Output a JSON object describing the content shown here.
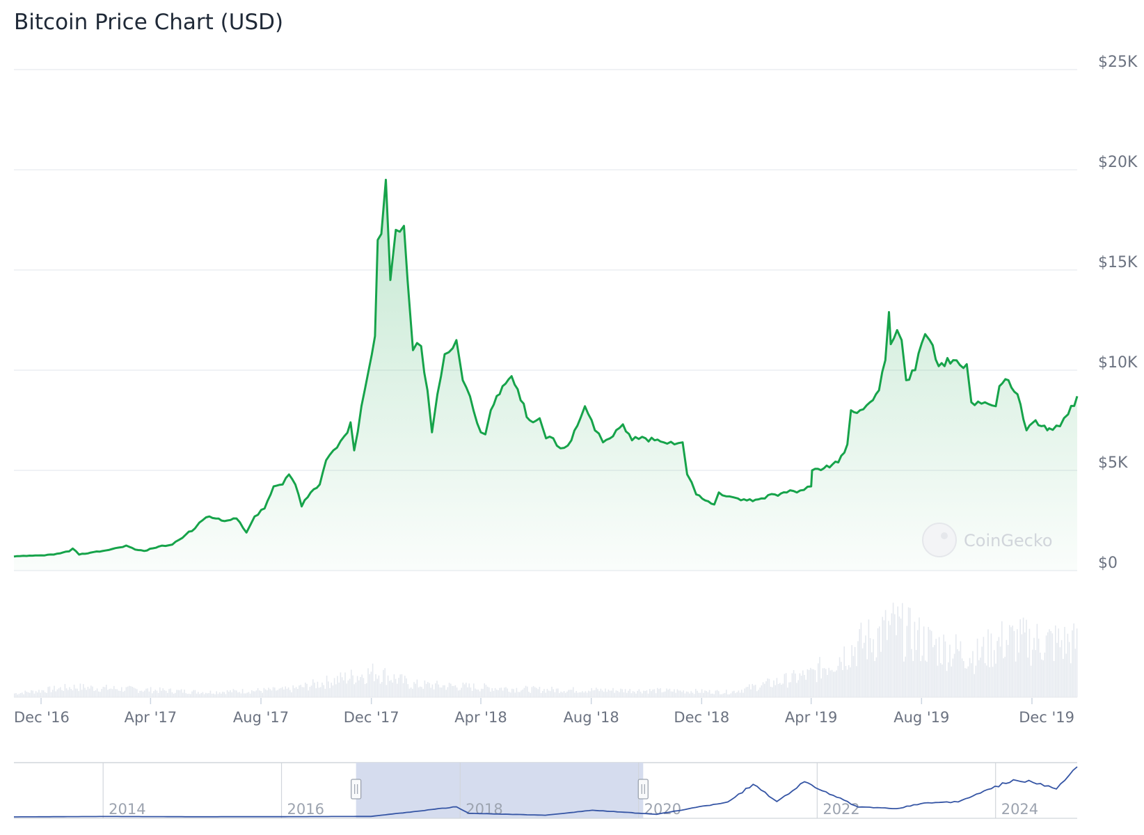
{
  "title": "Bitcoin Price Chart (USD)",
  "watermark": "CoinGecko",
  "colors": {
    "price_line": "#16a34a",
    "volume": "#e5e9ef",
    "navigator_line": "#3454a4",
    "navigator_selection": "#d5dcee",
    "grid": "#e8ebef"
  },
  "chart_data": {
    "type": "area",
    "series_name": "",
    "x_range": [
      "2016-11-01",
      "2020-01-20"
    ],
    "ylim": [
      0,
      25000
    ],
    "y_ticks": [
      0,
      5000,
      10000,
      15000,
      20000,
      25000
    ],
    "y_tick_labels": [
      "$0",
      "$5K",
      "$10K",
      "$15K",
      "$20K",
      "$25K"
    ],
    "x_tick_labels": [
      "Dec '16",
      "Apr '17",
      "Aug '17",
      "Dec '17",
      "Apr '18",
      "Aug '18",
      "Dec '18",
      "Apr '19",
      "Aug '19",
      "Dec '19"
    ],
    "x_tick_dates": [
      "2016-12-01",
      "2017-04-01",
      "2017-08-01",
      "2017-12-01",
      "2018-04-01",
      "2018-08-01",
      "2018-12-01",
      "2019-04-01",
      "2019-08-01",
      "2019-12-01"
    ],
    "price": {
      "dates": [
        "2016-11-01",
        "2016-11-15",
        "2016-12-01",
        "2016-12-15",
        "2017-01-01",
        "2017-01-05",
        "2017-01-12",
        "2017-01-25",
        "2017-02-10",
        "2017-02-25",
        "2017-03-05",
        "2017-03-15",
        "2017-03-25",
        "2017-04-10",
        "2017-04-25",
        "2017-05-10",
        "2017-05-20",
        "2017-05-25",
        "2017-06-05",
        "2017-06-12",
        "2017-06-25",
        "2017-07-05",
        "2017-07-16",
        "2017-07-25",
        "2017-08-05",
        "2017-08-15",
        "2017-08-25",
        "2017-09-01",
        "2017-09-08",
        "2017-09-15",
        "2017-09-25",
        "2017-10-05",
        "2017-10-12",
        "2017-10-20",
        "2017-11-01",
        "2017-11-08",
        "2017-11-12",
        "2017-11-20",
        "2017-11-28",
        "2017-12-05",
        "2017-12-08",
        "2017-12-12",
        "2017-12-17",
        "2017-12-22",
        "2017-12-28",
        "2018-01-06",
        "2018-01-10",
        "2018-01-16",
        "2018-01-25",
        "2018-02-01",
        "2018-02-06",
        "2018-02-12",
        "2018-02-20",
        "2018-03-01",
        "2018-03-05",
        "2018-03-12",
        "2018-03-20",
        "2018-04-01",
        "2018-04-06",
        "2018-04-12",
        "2018-04-25",
        "2018-05-05",
        "2018-05-15",
        "2018-05-25",
        "2018-06-05",
        "2018-06-12",
        "2018-06-20",
        "2018-06-28",
        "2018-07-10",
        "2018-07-20",
        "2018-07-25",
        "2018-08-05",
        "2018-08-14",
        "2018-08-25",
        "2018-09-05",
        "2018-09-15",
        "2018-09-30",
        "2018-10-10",
        "2018-10-20",
        "2018-11-01",
        "2018-11-10",
        "2018-11-15",
        "2018-11-20",
        "2018-11-25",
        "2018-12-05",
        "2018-12-15",
        "2018-12-20",
        "2019-01-01",
        "2019-01-10",
        "2019-01-20",
        "2019-02-05",
        "2019-02-20",
        "2019-03-05",
        "2019-03-20",
        "2019-04-01",
        "2019-04-02",
        "2019-04-15",
        "2019-05-01",
        "2019-05-11",
        "2019-05-15",
        "2019-05-25",
        "2019-06-05",
        "2019-06-15",
        "2019-06-22",
        "2019-06-26",
        "2019-06-28",
        "2019-07-05",
        "2019-07-10",
        "2019-07-15",
        "2019-07-25",
        "2019-08-05",
        "2019-08-10",
        "2019-08-20",
        "2019-09-05",
        "2019-09-20",
        "2019-09-25",
        "2019-10-10",
        "2019-10-22",
        "2019-10-26",
        "2019-11-05",
        "2019-11-15",
        "2019-11-25",
        "2019-12-05",
        "2019-12-18",
        "2019-12-20",
        "2020-01-01",
        "2020-01-10",
        "2020-01-20"
      ],
      "values": [
        700,
        730,
        760,
        800,
        960,
        1100,
        800,
        900,
        1000,
        1150,
        1250,
        1050,
        980,
        1200,
        1300,
        1800,
        2100,
        2400,
        2700,
        2600,
        2500,
        2600,
        1900,
        2700,
        3100,
        4200,
        4300,
        4800,
        4300,
        3200,
        3900,
        4300,
        5500,
        6000,
        6700,
        7400,
        6000,
        8200,
        10000,
        11700,
        16500,
        16800,
        19500,
        14500,
        17000,
        17200,
        14500,
        11000,
        11200,
        9000,
        6900,
        8800,
        10800,
        11100,
        11500,
        9500,
        8700,
        6900,
        6800,
        8000,
        9200,
        9700,
        8500,
        7500,
        7600,
        6600,
        6600,
        6100,
        6500,
        7600,
        8200,
        7000,
        6400,
        6700,
        7300,
        6500,
        6600,
        6500,
        6400,
        6300,
        6400,
        4800,
        4400,
        3800,
        3500,
        3300,
        3900,
        3700,
        3600,
        3500,
        3600,
        3800,
        3900,
        4000,
        4200,
        5000,
        5100,
        5400,
        6300,
        8000,
        8000,
        8400,
        9000,
        10500,
        12900,
        11300,
        12000,
        11500,
        9500,
        10000,
        11800,
        11500,
        10200,
        10500,
        10300,
        8400,
        8400,
        8200,
        9200,
        9500,
        8800,
        7000,
        7500,
        7000,
        7100,
        7200,
        7800,
        8700
      ]
    },
    "volume_profile": {
      "dates": [
        "2016-11-01",
        "2017-01-05",
        "2017-06-01",
        "2017-09-01",
        "2017-12-05",
        "2018-01-15",
        "2018-06-01",
        "2018-11-01",
        "2019-01-01",
        "2019-04-01",
        "2019-05-15",
        "2019-07-01",
        "2019-08-15",
        "2019-10-01",
        "2019-11-01",
        "2020-01-20"
      ],
      "relative_values": [
        0.03,
        0.08,
        0.04,
        0.06,
        0.2,
        0.1,
        0.06,
        0.05,
        0.04,
        0.18,
        0.38,
        0.55,
        0.4,
        0.33,
        0.45,
        0.42
      ]
    },
    "navigator": {
      "x_range": [
        "2013-01-01",
        "2024-11-30"
      ],
      "x_tick_labels": [
        "2014",
        "2016",
        "2018",
        "2020",
        "2022",
        "2024"
      ],
      "selection": [
        "2016-11-01",
        "2020-01-20"
      ],
      "dates": [
        "2013-01-01",
        "2014-01-01",
        "2015-01-01",
        "2016-01-01",
        "2017-01-01",
        "2017-12-17",
        "2018-02-06",
        "2018-12-15",
        "2019-06-26",
        "2020-03-15",
        "2020-12-31",
        "2021-04-14",
        "2021-07-20",
        "2021-11-10",
        "2022-06-18",
        "2022-11-21",
        "2023-03-15",
        "2023-08-01",
        "2024-03-14",
        "2024-06-01",
        "2024-09-06",
        "2024-11-30"
      ],
      "values": [
        13,
        800,
        300,
        430,
        1000,
        19500,
        7000,
        3300,
        12900,
        5000,
        29000,
        63000,
        29800,
        68000,
        19000,
        16000,
        27000,
        29000,
        72000,
        67000,
        54000,
        97000
      ]
    }
  }
}
